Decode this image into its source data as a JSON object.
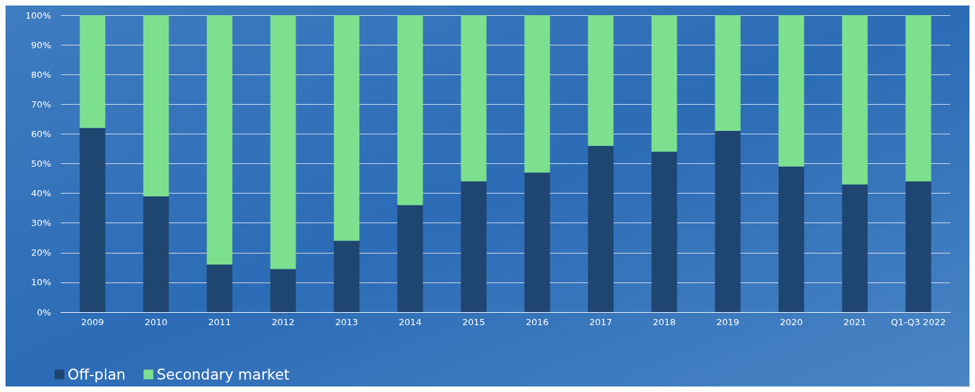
{
  "chart_data": {
    "type": "bar",
    "stacked": true,
    "categories": [
      "2009",
      "2010",
      "2011",
      "2012",
      "2013",
      "2014",
      "2015",
      "2016",
      "2017",
      "2018",
      "2019",
      "2020",
      "2021",
      "Q1-Q3 2022"
    ],
    "series": [
      {
        "name": "Off-plan",
        "color": "#1f4571",
        "values": [
          62,
          39,
          16,
          14.5,
          24,
          36,
          44,
          47,
          56,
          54,
          61,
          49,
          43,
          44
        ]
      },
      {
        "name": "Secondary market",
        "color": "#7de08f",
        "values": [
          38,
          61,
          84,
          85.5,
          76,
          64,
          56,
          53,
          44,
          46,
          39,
          51,
          57,
          56
        ]
      }
    ],
    "ylim": [
      0,
      100
    ],
    "yticks": [
      {
        "value": 0,
        "label": "0%"
      },
      {
        "value": 10,
        "label": "10%"
      },
      {
        "value": 20,
        "label": "20%"
      },
      {
        "value": 30,
        "label": "30%"
      },
      {
        "value": 40,
        "label": "40%"
      },
      {
        "value": 50,
        "label": "50%"
      },
      {
        "value": 60,
        "label": "60%"
      },
      {
        "value": 70,
        "label": "70%"
      },
      {
        "value": 80,
        "label": "80%"
      },
      {
        "value": 90,
        "label": "90%"
      },
      {
        "value": 100,
        "label": "100%"
      }
    ],
    "grid": "y",
    "legend": "bottom left"
  }
}
